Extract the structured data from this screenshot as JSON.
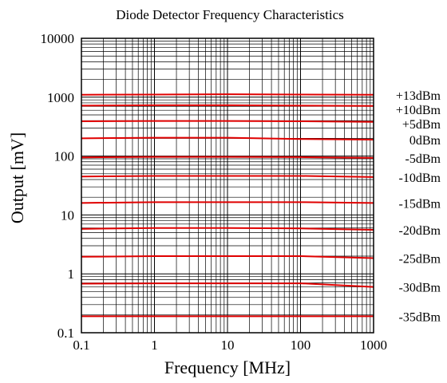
{
  "chart_data": {
    "type": "line",
    "title": "Diode Detector Frequency Characteristics",
    "xlabel": "Frequency [MHz]",
    "ylabel": "Output [mV]",
    "x_scale": "log",
    "y_scale": "log",
    "xlim": [
      0.1,
      1000
    ],
    "ylim": [
      0.1,
      10000
    ],
    "x_ticks": [
      "0.1",
      "1",
      "10",
      "100",
      "1000"
    ],
    "y_ticks": [
      "0.1",
      "1",
      "10",
      "100",
      "1000",
      "10000"
    ],
    "grid": true,
    "line_color": "#e00000",
    "x": [
      0.1,
      1,
      10,
      100,
      1000
    ],
    "series": [
      {
        "name": "+13dBm",
        "values": [
          1100,
          1110,
          1120,
          1110,
          1100
        ]
      },
      {
        "name": "+10dBm",
        "values": [
          720,
          730,
          730,
          720,
          710
        ]
      },
      {
        "name": "+5dBm",
        "values": [
          390,
          395,
          395,
          390,
          380
        ]
      },
      {
        "name": "0dBm",
        "values": [
          200,
          205,
          205,
          195,
          190
        ]
      },
      {
        "name": "-5dBm",
        "values": [
          95,
          97,
          97,
          96,
          93
        ]
      },
      {
        "name": "-10dBm",
        "values": [
          45,
          46,
          46,
          46,
          44
        ]
      },
      {
        "name": "-15dBm",
        "values": [
          16,
          16.5,
          16.5,
          16.5,
          16
        ]
      },
      {
        "name": "-20dBm",
        "values": [
          5.8,
          6,
          6,
          5.9,
          5.6
        ]
      },
      {
        "name": "-25dBm",
        "values": [
          1.95,
          2,
          2,
          2,
          1.85
        ]
      },
      {
        "name": "-30dBm",
        "values": [
          0.68,
          0.69,
          0.69,
          0.69,
          0.6
        ]
      },
      {
        "name": "-35dBm",
        "values": [
          0.19,
          0.19,
          0.19,
          0.19,
          0.19
        ]
      }
    ]
  }
}
